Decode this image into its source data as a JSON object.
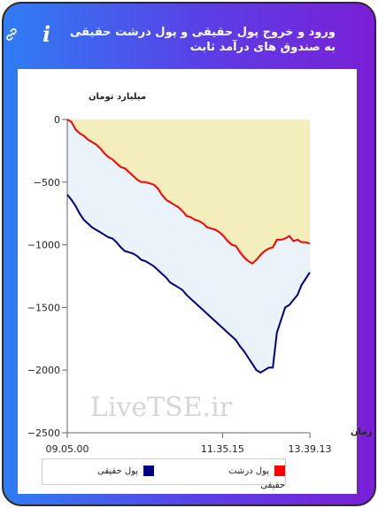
{
  "header": {
    "title": "ورود و خروج پول حقیقی و پول درشت حقیقی به صندوق های درآمد ثابت",
    "info_icon": "info-icon",
    "link_icon": "link-icon"
  },
  "watermark": "LiveTSE.ir",
  "colors": {
    "real_money": "#000080",
    "large_real_money": "#ff0000",
    "fill_blue": "#eaf3fa",
    "fill_yellow": "#f3eebb"
  },
  "chart_data": {
    "type": "line",
    "ylabel": "میلیارد تومان",
    "xlabel": "زمان",
    "ylim": [
      -2500,
      0
    ],
    "yticks": [
      0,
      -500,
      -1000,
      -1500,
      -2000,
      -2500
    ],
    "xticks": [
      "09.05.00",
      "11.35.15",
      "13.39.13"
    ],
    "grid": false,
    "legend_position": "bottom",
    "series": [
      {
        "name": "پول درشت حقیقی",
        "color": "#ff0000",
        "values": [
          0,
          -20,
          -80,
          -110,
          -130,
          -160,
          -180,
          -200,
          -230,
          -270,
          -300,
          -320,
          -350,
          -380,
          -390,
          -420,
          -450,
          -480,
          -500,
          -500,
          -510,
          -520,
          -550,
          -600,
          -640,
          -660,
          -680,
          -700,
          -730,
          -770,
          -780,
          -800,
          -810,
          -830,
          -860,
          -870,
          -880,
          -900,
          -930,
          -970,
          -1000,
          -1010,
          -1060,
          -1100,
          -1130,
          -1150,
          -1120,
          -1080,
          -1050,
          -1030,
          -1020,
          -960,
          -960,
          -950,
          -930,
          -970,
          -960,
          -980,
          -980,
          -990
        ]
      },
      {
        "name": "پول حقیقی",
        "color": "#000080",
        "values": [
          -600,
          -640,
          -690,
          -750,
          -800,
          -830,
          -860,
          -880,
          -900,
          -920,
          -940,
          -950,
          -980,
          -1020,
          -1050,
          -1060,
          -1070,
          -1090,
          -1120,
          -1130,
          -1150,
          -1170,
          -1200,
          -1230,
          -1260,
          -1300,
          -1320,
          -1340,
          -1360,
          -1400,
          -1430,
          -1460,
          -1490,
          -1520,
          -1550,
          -1580,
          -1610,
          -1640,
          -1670,
          -1700,
          -1730,
          -1760,
          -1810,
          -1850,
          -1900,
          -1950,
          -2000,
          -2020,
          -2000,
          -1980,
          -1980,
          -1700,
          -1600,
          -1500,
          -1480,
          -1440,
          -1400,
          -1320,
          -1270,
          -1220
        ]
      }
    ]
  }
}
